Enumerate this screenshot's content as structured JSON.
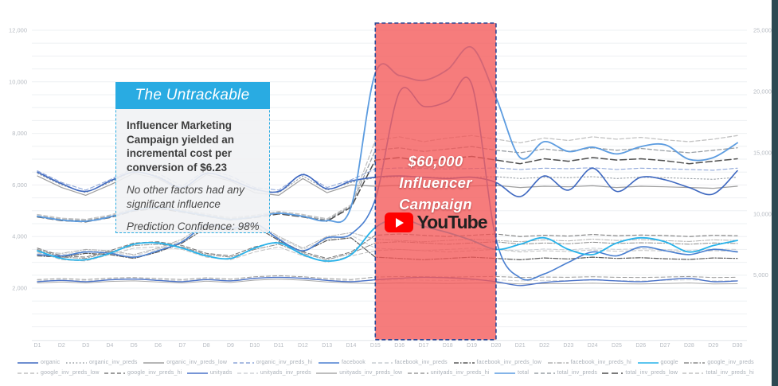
{
  "callout": {
    "header": "The Untrackable",
    "line1": "Influencer Marketing Campaign yielded an incremental cost per conversion of $6.23",
    "line2": "No other factors had any significant influence",
    "line3": "Prediction Confidence: 98%"
  },
  "region": {
    "label_line1": "$60,000",
    "label_line2": "Influencer",
    "label_line3": "Campaign",
    "youtube_label": "YouTube",
    "start_day": "D15",
    "end_day": "D20",
    "fill_color": "#f35757",
    "border_color": "#2b4896"
  },
  "chart_data": {
    "type": "line",
    "title": "",
    "xlabel": "",
    "ylabel_left": "",
    "ylabel_right": "",
    "x_categories": [
      "D1",
      "D2",
      "D3",
      "D4",
      "D5",
      "D6",
      "D7",
      "D8",
      "D9",
      "D10",
      "D11",
      "D12",
      "D13",
      "D14",
      "D15",
      "D16",
      "D17",
      "D18",
      "D19",
      "D20",
      "D21",
      "D22",
      "D23",
      "D24",
      "D25",
      "D26",
      "D27",
      "D28",
      "D29",
      "D30"
    ],
    "left_axis": {
      "min": 0,
      "max": 12500,
      "ticks": [
        2000,
        4000,
        6000,
        8000,
        10000,
        12000
      ],
      "minor_grid_step": 500
    },
    "right_axis": {
      "min": 0,
      "max": 25500,
      "ticks": [
        5000,
        10000,
        15000,
        20000,
        25000
      ]
    },
    "grid": true,
    "legend_position": "bottom",
    "highlight_region": {
      "x_start": 15,
      "x_end": 20
    },
    "series": [
      {
        "name": "organic",
        "axis": "left",
        "color": "#3e68c0",
        "dash": "solid",
        "width": 1.6,
        "smooth": true,
        "values": [
          6500,
          6050,
          5750,
          6150,
          6500,
          6300,
          5900,
          6450,
          6200,
          5850,
          5750,
          6400,
          5850,
          6150,
          6300,
          6350,
          6300,
          6250,
          6300,
          6100,
          5550,
          6350,
          5800,
          6650,
          5750,
          6300,
          6200,
          5900,
          5650,
          6550
        ]
      },
      {
        "name": "organic_inv_preds",
        "axis": "left",
        "color": "#9aa0a6",
        "dash": "dotted",
        "width": 1.1,
        "smooth": false,
        "values": [
          6450,
          6000,
          5700,
          6100,
          6550,
          6350,
          5850,
          6500,
          6250,
          5800,
          5700,
          6350,
          5800,
          6100,
          6280,
          6320,
          6300,
          6280,
          6300,
          6320,
          6250,
          6300,
          6280,
          6320,
          6250,
          6300,
          6280,
          6250,
          6220,
          6300
        ]
      },
      {
        "name": "organic_inv_preds_low",
        "axis": "left",
        "color": "#9e9e9e",
        "dash": "solid",
        "width": 1.2,
        "smooth": false,
        "values": [
          6350,
          5900,
          5600,
          6000,
          6450,
          6250,
          5750,
          6400,
          6150,
          5700,
          5600,
          6250,
          5700,
          6000,
          5950,
          5980,
          5960,
          5940,
          5960,
          5980,
          5900,
          5950,
          5930,
          5970,
          5900,
          5950,
          5930,
          5900,
          5870,
          5950
        ]
      },
      {
        "name": "organic_inv_preds_hi",
        "axis": "left",
        "color": "#8ea6d8",
        "dash": "dashed",
        "width": 1.1,
        "smooth": false,
        "values": [
          6550,
          6100,
          5800,
          6200,
          6650,
          6450,
          5950,
          6600,
          6350,
          5900,
          5800,
          6450,
          5900,
          6200,
          6620,
          6660,
          6640,
          6620,
          6640,
          6660,
          6600,
          6650,
          6630,
          6670,
          6600,
          6650,
          6630,
          6600,
          6570,
          6650
        ]
      },
      {
        "name": "facebook",
        "axis": "left",
        "color": "#4a7fd0",
        "dash": "solid",
        "width": 1.6,
        "smooth": true,
        "values": [
          3300,
          3250,
          3400,
          3350,
          3200,
          3450,
          3800,
          4450,
          4300,
          4500,
          3900,
          3450,
          3950,
          4100,
          5450,
          9600,
          9050,
          9250,
          9880,
          3900,
          2400,
          2550,
          3000,
          3400,
          3250,
          3600,
          3450,
          3300,
          3500,
          3400
        ]
      },
      {
        "name": "facebook_inv_preds",
        "axis": "left",
        "color": "#c9cdd2",
        "dash": "dashed",
        "width": 1.0,
        "smooth": false,
        "values": [
          3350,
          3300,
          3450,
          3400,
          3250,
          3500,
          3850,
          4400,
          4350,
          4450,
          3950,
          3500,
          3900,
          4050,
          3550,
          3500,
          3450,
          3500,
          3550,
          3500,
          3450,
          3520,
          3480,
          3550,
          3500,
          3530,
          3490,
          3460,
          3520,
          3500
        ]
      },
      {
        "name": "facebook_inv_preds_low",
        "axis": "left",
        "color": "#5a5a5a",
        "dash": "dashdot",
        "width": 1.2,
        "smooth": false,
        "values": [
          3250,
          3200,
          3350,
          3300,
          3150,
          3400,
          3750,
          4350,
          4250,
          4400,
          3850,
          3400,
          3850,
          3950,
          3200,
          3150,
          3100,
          3150,
          3200,
          3150,
          3100,
          3170,
          3130,
          3200,
          3150,
          3180,
          3140,
          3110,
          3170,
          3150
        ]
      },
      {
        "name": "facebook_inv_preds_hi",
        "axis": "left",
        "color": "#b0b0b0",
        "dash": "dashdot",
        "width": 1.0,
        "smooth": false,
        "values": [
          3400,
          3350,
          3500,
          3450,
          3300,
          3550,
          3900,
          4500,
          4400,
          4550,
          4000,
          3550,
          4000,
          4150,
          3900,
          3850,
          3800,
          3850,
          3900,
          3850,
          3800,
          3870,
          3830,
          3900,
          3850,
          3880,
          3840,
          3810,
          3870,
          3850
        ]
      },
      {
        "name": "google",
        "axis": "left",
        "color": "#27b2ea",
        "dash": "solid",
        "width": 1.8,
        "smooth": true,
        "values": [
          3450,
          3150,
          3100,
          3350,
          3700,
          3750,
          3550,
          3250,
          3150,
          3550,
          3750,
          3300,
          3050,
          3300,
          4350,
          4700,
          4400,
          4150,
          3850,
          3500,
          3700,
          3950,
          3500,
          3300,
          3750,
          3950,
          3800,
          3400,
          3650,
          3850
        ]
      },
      {
        "name": "google_inv_preds",
        "axis": "left",
        "color": "#8c8c8c",
        "dash": "dashdot",
        "width": 1.0,
        "smooth": false,
        "values": [
          3500,
          3200,
          3150,
          3400,
          3650,
          3700,
          3600,
          3300,
          3200,
          3500,
          3700,
          3350,
          3100,
          3350,
          3750,
          3800,
          3750,
          3700,
          3750,
          3800,
          3700,
          3750,
          3720,
          3780,
          3730,
          3760,
          3740,
          3700,
          3750,
          3730
        ]
      },
      {
        "name": "google_inv_preds_low",
        "axis": "left",
        "color": "#c0c0c0",
        "dash": "dashed",
        "width": 1.0,
        "smooth": false,
        "values": [
          3400,
          3100,
          3050,
          3300,
          3550,
          3600,
          3500,
          3200,
          3100,
          3400,
          3600,
          3250,
          3000,
          3250,
          3450,
          3500,
          3450,
          3400,
          3450,
          3500,
          3400,
          3450,
          3420,
          3480,
          3430,
          3460,
          3440,
          3400,
          3450,
          3430
        ]
      },
      {
        "name": "google_inv_preds_hi",
        "axis": "left",
        "color": "#7d7d7d",
        "dash": "dashed",
        "width": 1.1,
        "smooth": false,
        "values": [
          3550,
          3250,
          3200,
          3450,
          3750,
          3800,
          3650,
          3350,
          3250,
          3600,
          3800,
          3400,
          3150,
          3400,
          4050,
          4100,
          4050,
          4000,
          4050,
          4100,
          4000,
          4050,
          4020,
          4080,
          4030,
          4060,
          4040,
          4000,
          4050,
          4030
        ]
      },
      {
        "name": "unityads",
        "axis": "left",
        "color": "#4a72c8",
        "dash": "solid",
        "width": 1.4,
        "smooth": true,
        "values": [
          2250,
          2300,
          2250,
          2320,
          2350,
          2300,
          2250,
          2330,
          2280,
          2380,
          2420,
          2380,
          2300,
          2250,
          2320,
          2380,
          2420,
          2400,
          2350,
          2250,
          2100,
          2220,
          2280,
          2320,
          2280,
          2250,
          2320,
          2380,
          2250,
          2280
        ]
      },
      {
        "name": "unityads_inv_preds",
        "axis": "left",
        "color": "#d0d3d7",
        "dash": "dashed",
        "width": 1.0,
        "smooth": false,
        "values": [
          2280,
          2320,
          2280,
          2340,
          2360,
          2320,
          2280,
          2350,
          2300,
          2390,
          2430,
          2390,
          2320,
          2280,
          2300,
          2320,
          2310,
          2300,
          2310,
          2320,
          2280,
          2300,
          2290,
          2310,
          2290,
          2280,
          2300,
          2320,
          2280,
          2290
        ]
      },
      {
        "name": "unityads_inv_preds_low",
        "axis": "left",
        "color": "#a8a8a8",
        "dash": "solid",
        "width": 1.0,
        "smooth": false,
        "values": [
          2200,
          2240,
          2200,
          2260,
          2280,
          2240,
          2200,
          2270,
          2220,
          2310,
          2350,
          2310,
          2240,
          2200,
          2180,
          2200,
          2190,
          2180,
          2190,
          2200,
          2160,
          2180,
          2170,
          2190,
          2170,
          2160,
          2180,
          2200,
          2160,
          2170
        ]
      },
      {
        "name": "unityads_inv_preds_hi",
        "axis": "left",
        "color": "#9b9b9b",
        "dash": "dashed",
        "width": 1.0,
        "smooth": false,
        "values": [
          2330,
          2370,
          2330,
          2390,
          2410,
          2370,
          2330,
          2400,
          2350,
          2440,
          2480,
          2440,
          2370,
          2330,
          2430,
          2450,
          2440,
          2430,
          2440,
          2450,
          2410,
          2430,
          2420,
          2440,
          2420,
          2410,
          2430,
          2450,
          2410,
          2420
        ]
      },
      {
        "name": "total",
        "axis": "right",
        "color": "#5c9ce0",
        "dash": "solid",
        "width": 1.8,
        "smooth": true,
        "values": [
          9800,
          9500,
          9400,
          9750,
          10300,
          10500,
          10200,
          9850,
          9550,
          9750,
          10050,
          9800,
          9450,
          10600,
          21500,
          21300,
          20900,
          21800,
          23600,
          19500,
          14600,
          15900,
          15100,
          15450,
          14900,
          15500,
          15650,
          14450,
          14600,
          15800
        ]
      },
      {
        "name": "total_inv_preds",
        "axis": "right",
        "color": "#9aa0a6",
        "dash": "dashed",
        "width": 1.3,
        "smooth": false,
        "values": [
          9850,
          9550,
          9450,
          9800,
          10350,
          10550,
          10250,
          9900,
          9600,
          9800,
          10100,
          9850,
          9500,
          10650,
          15200,
          15400,
          15100,
          15300,
          15500,
          15200,
          15000,
          15300,
          15100,
          15400,
          15200,
          15350,
          15150,
          15000,
          15200,
          15400
        ]
      },
      {
        "name": "total_inv_preds_low",
        "axis": "right",
        "color": "#4f4f4f",
        "dash": "longdash",
        "width": 1.5,
        "smooth": false,
        "values": [
          9750,
          9450,
          9350,
          9700,
          10250,
          10450,
          10150,
          9800,
          9500,
          9700,
          10000,
          9750,
          9400,
          10550,
          14400,
          14600,
          14300,
          14500,
          14700,
          14400,
          14100,
          14500,
          14300,
          14600,
          14400,
          14500,
          14350,
          14100,
          14300,
          14500
        ]
      },
      {
        "name": "total_inv_preds_hi",
        "axis": "right",
        "color": "#c2c2c2",
        "dash": "dashed",
        "width": 1.3,
        "smooth": false,
        "values": [
          9950,
          9650,
          9550,
          9900,
          10450,
          10650,
          10350,
          10000,
          9700,
          9900,
          10200,
          9950,
          9600,
          10750,
          16000,
          16300,
          15900,
          16200,
          16400,
          16100,
          15800,
          16200,
          16000,
          16300,
          16100,
          16250,
          16050,
          15900,
          16100,
          16400
        ]
      }
    ],
    "legend_rows": [
      [
        "organic",
        "organic_inv_preds",
        "organic_inv_preds_low",
        "organic_inv_preds_hi",
        "facebook",
        "facebook_inv_preds",
        "facebook_inv_preds_low",
        "facebook_inv_preds_hi",
        "google",
        "google_inv_preds"
      ],
      [
        "google_inv_preds_low",
        "google_inv_preds_hi",
        "unityads",
        "unityads_inv_preds",
        "unityads_inv_preds_low",
        "unityads_inv_preds_hi",
        "total",
        "total_inv_preds",
        "total_inv_preds_low",
        "total_inv_preds_hi"
      ]
    ]
  }
}
